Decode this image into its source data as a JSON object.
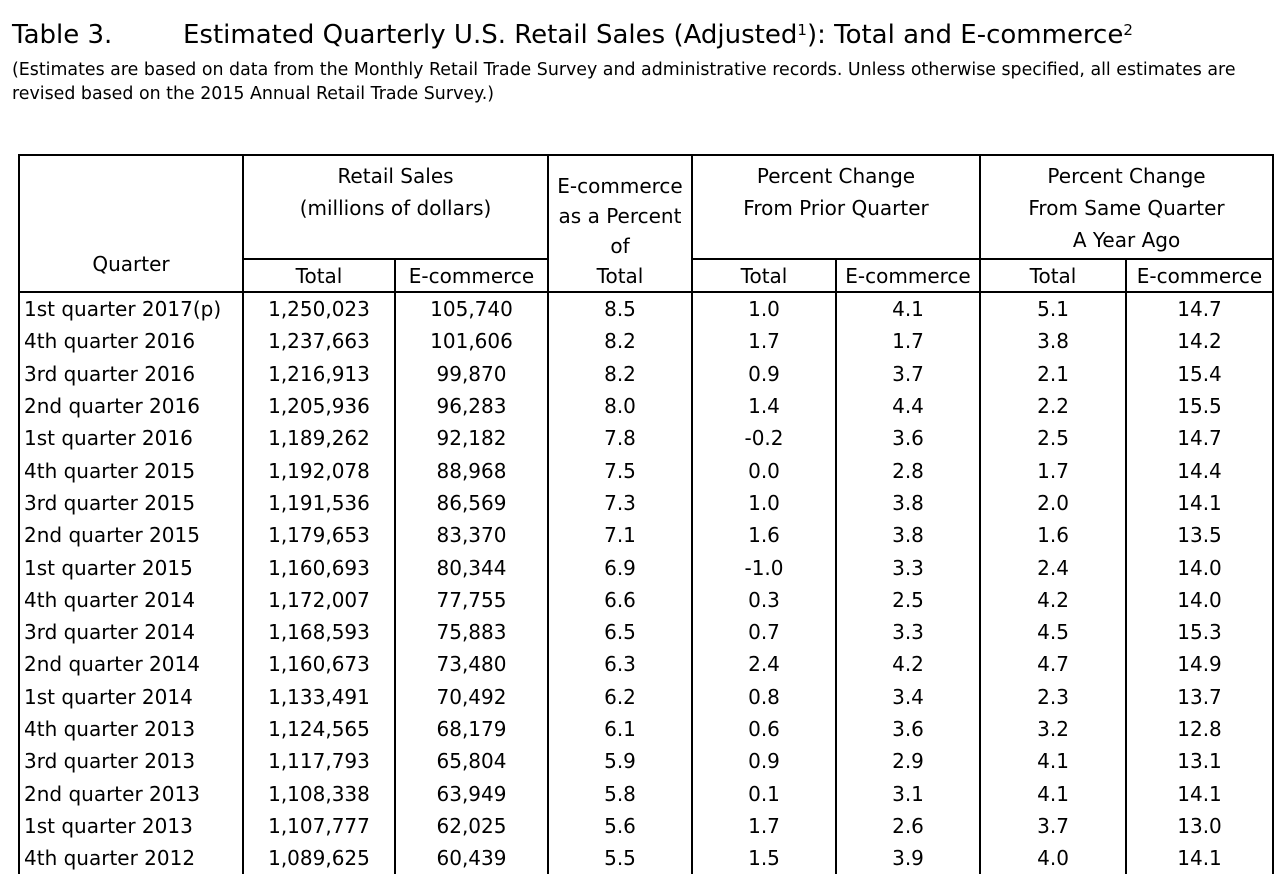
{
  "title": {
    "number": "Table 3.",
    "text": "Estimated Quarterly U.S. Retail Sales (Adjusted",
    "sup1": "1",
    "text2": "): Total and E-commerce",
    "sup2": "2"
  },
  "subtitle": "(Estimates are based on data from the Monthly Retail Trade Survey and administrative records. Unless otherwise specified, all estimates are revised based on the 2015 Annual Retail Trade Survey.)",
  "headers": {
    "quarter": "Quarter",
    "retail_sales_line1": "Retail Sales",
    "retail_sales_line2": "(millions of dollars)",
    "ecom_pct_line1": "E-commerce",
    "ecom_pct_line2": "as a Percent",
    "ecom_pct_line3": "of",
    "ecom_pct_line4": "Total",
    "prior_q_line1": "Percent Change",
    "prior_q_line2": "From Prior Quarter",
    "year_ago_line1": "Percent Change",
    "year_ago_line2": "From Same Quarter",
    "year_ago_line3": "A Year Ago",
    "total": "Total",
    "ecommerce": "E-commerce"
  },
  "rows": [
    [
      "1st quarter 2017(p)",
      "1,250,023",
      "105,740",
      "8.5",
      "1.0",
      "4.1",
      "5.1",
      "14.7"
    ],
    [
      "4th quarter 2016",
      "1,237,663",
      "101,606",
      "8.2",
      "1.7",
      "1.7",
      "3.8",
      "14.2"
    ],
    [
      "3rd quarter 2016",
      "1,216,913",
      "99,870",
      "8.2",
      "0.9",
      "3.7",
      "2.1",
      "15.4"
    ],
    [
      "2nd quarter 2016",
      "1,205,936",
      "96,283",
      "8.0",
      "1.4",
      "4.4",
      "2.2",
      "15.5"
    ],
    [
      "1st quarter 2016",
      "1,189,262",
      "92,182",
      "7.8",
      "-0.2",
      "3.6",
      "2.5",
      "14.7"
    ],
    [
      "4th quarter 2015",
      "1,192,078",
      "88,968",
      "7.5",
      "0.0",
      "2.8",
      "1.7",
      "14.4"
    ],
    [
      "3rd quarter 2015",
      "1,191,536",
      "86,569",
      "7.3",
      "1.0",
      "3.8",
      "2.0",
      "14.1"
    ],
    [
      "2nd quarter 2015",
      "1,179,653",
      "83,370",
      "7.1",
      "1.6",
      "3.8",
      "1.6",
      "13.5"
    ],
    [
      "1st quarter 2015",
      "1,160,693",
      "80,344",
      "6.9",
      "-1.0",
      "3.3",
      "2.4",
      "14.0"
    ],
    [
      "4th quarter 2014",
      "1,172,007",
      "77,755",
      "6.6",
      "0.3",
      "2.5",
      "4.2",
      "14.0"
    ],
    [
      "3rd quarter 2014",
      "1,168,593",
      "75,883",
      "6.5",
      "0.7",
      "3.3",
      "4.5",
      "15.3"
    ],
    [
      "2nd quarter 2014",
      "1,160,673",
      "73,480",
      "6.3",
      "2.4",
      "4.2",
      "4.7",
      "14.9"
    ],
    [
      "1st quarter 2014",
      "1,133,491",
      "70,492",
      "6.2",
      "0.8",
      "3.4",
      "2.3",
      "13.7"
    ],
    [
      "4th quarter 2013",
      "1,124,565",
      "68,179",
      "6.1",
      "0.6",
      "3.6",
      "3.2",
      "12.8"
    ],
    [
      "3rd quarter 2013",
      "1,117,793",
      "65,804",
      "5.9",
      "0.9",
      "2.9",
      "4.1",
      "13.1"
    ],
    [
      "2nd quarter 2013",
      "1,108,338",
      "63,949",
      "5.8",
      "0.1",
      "3.1",
      "4.1",
      "14.1"
    ],
    [
      "1st quarter 2013",
      "1,107,777",
      "62,025",
      "5.6",
      "1.7",
      "2.6",
      "3.7",
      "13.0"
    ],
    [
      "4th quarter 2012",
      "1,089,625",
      "60,439",
      "5.5",
      "1.5",
      "3.9",
      "4.0",
      "14.1"
    ]
  ]
}
